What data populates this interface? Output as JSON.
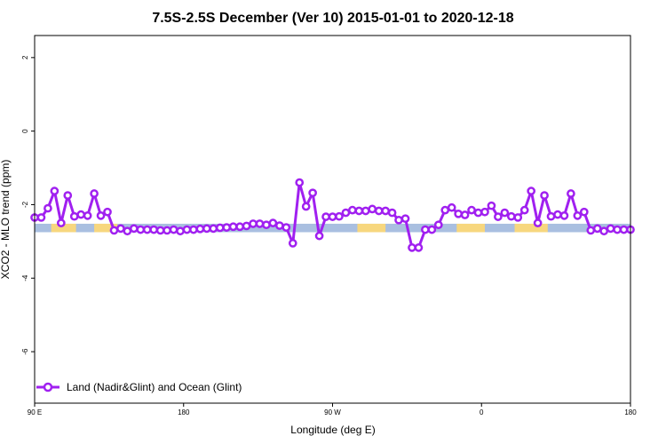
{
  "chart_data": {
    "type": "line",
    "title": "7.5S-2.5S December (Ver 10)   2015-01-01 to 2020-12-18",
    "xlabel": "Longitude (deg E)",
    "ylabel": "XCO2 - MLO trend (ppm)",
    "xlim": [
      90,
      450
    ],
    "ylim": [
      -7.4,
      2.6
    ],
    "x_ticks": [
      {
        "value": 90,
        "label": "90 E"
      },
      {
        "value": 180,
        "label": "180"
      },
      {
        "value": 270,
        "label": "90 W"
      },
      {
        "value": 360,
        "label": "0"
      },
      {
        "value": 450,
        "label": "180"
      }
    ],
    "y_ticks": [
      {
        "value": 2,
        "label": "2"
      },
      {
        "value": 0,
        "label": "0"
      },
      {
        "value": -2,
        "label": "-2"
      },
      {
        "value": -4,
        "label": "-4"
      },
      {
        "value": -6,
        "label": "-6"
      }
    ],
    "grid": false,
    "legend_position": "bottom-left",
    "band": {
      "ymin": -2.75,
      "ymax": -2.52,
      "ocean_color": "#a9bfe0",
      "land_color": "#f7d77e"
    },
    "land_segments": [
      [
        100,
        115
      ],
      [
        126,
        140
      ],
      [
        285,
        302
      ],
      [
        345,
        362
      ],
      [
        380,
        400
      ],
      [
        473,
        490
      ]
    ],
    "series": [
      {
        "name": "Land (Nadir&Glint) and Ocean (Glint)",
        "color": "#a020f0",
        "x": [
          90,
          94,
          98,
          102,
          106,
          110,
          114,
          118,
          122,
          126,
          130,
          134,
          138,
          142,
          146,
          150,
          154,
          158,
          162,
          166,
          170,
          174,
          178,
          182,
          186,
          190,
          194,
          198,
          202,
          206,
          210,
          214,
          218,
          222,
          226,
          230,
          234,
          238,
          242,
          246,
          250,
          254,
          258,
          262,
          266,
          270,
          274,
          278,
          282,
          286,
          290,
          294,
          298,
          302,
          306,
          310,
          314,
          318,
          322,
          326,
          330,
          334,
          338,
          342,
          346,
          350,
          354,
          358,
          362,
          366,
          370,
          374,
          378,
          382,
          386,
          390,
          394,
          398,
          402,
          406,
          410,
          414,
          418,
          422,
          426,
          430,
          434,
          438,
          442,
          446,
          450
        ],
        "y": [
          -2.35,
          -2.35,
          -2.1,
          -1.63,
          -2.5,
          -1.75,
          -2.32,
          -2.27,
          -2.3,
          -1.7,
          -2.3,
          -2.2,
          -2.7,
          -2.65,
          -2.72,
          -2.65,
          -2.68,
          -2.68,
          -2.68,
          -2.7,
          -2.7,
          -2.68,
          -2.72,
          -2.68,
          -2.68,
          -2.66,
          -2.65,
          -2.65,
          -2.63,
          -2.62,
          -2.6,
          -2.6,
          -2.58,
          -2.52,
          -2.52,
          -2.55,
          -2.5,
          -2.57,
          -2.62,
          -3.05,
          -1.4,
          -2.05,
          -1.68,
          -2.85,
          -2.33,
          -2.33,
          -2.32,
          -2.22,
          -2.15,
          -2.17,
          -2.17,
          -2.12,
          -2.17,
          -2.17,
          -2.22,
          -2.42,
          -2.38,
          -3.17,
          -3.17,
          -2.68,
          -2.68,
          -2.55,
          -2.15,
          -2.08,
          -2.25,
          -2.28,
          -2.15,
          -2.22,
          -2.2,
          -2.03,
          -2.33,
          -2.22,
          -2.32,
          -2.35,
          -2.15,
          -1.63,
          -2.5,
          -1.75,
          -2.32,
          -2.27,
          -2.3,
          -1.7,
          -2.3,
          -2.2,
          -2.7,
          -2.65,
          -2.72,
          -2.65,
          -2.68,
          -2.68,
          -2.68
        ]
      }
    ]
  }
}
